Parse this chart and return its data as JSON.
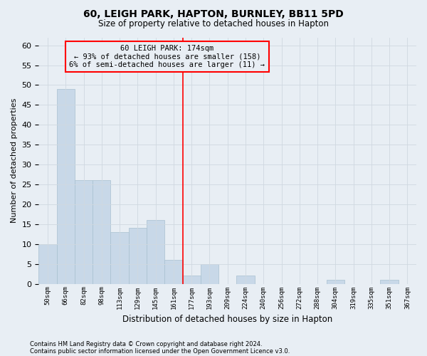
{
  "title1": "60, LEIGH PARK, HAPTON, BURNLEY, BB11 5PD",
  "title2": "Size of property relative to detached houses in Hapton",
  "xlabel": "Distribution of detached houses by size in Hapton",
  "ylabel": "Number of detached properties",
  "footer1": "Contains HM Land Registry data © Crown copyright and database right 2024.",
  "footer2": "Contains public sector information licensed under the Open Government Licence v3.0.",
  "bar_labels": [
    "50sqm",
    "66sqm",
    "82sqm",
    "98sqm",
    "113sqm",
    "129sqm",
    "145sqm",
    "161sqm",
    "177sqm",
    "193sqm",
    "209sqm",
    "224sqm",
    "240sqm",
    "256sqm",
    "272sqm",
    "288sqm",
    "304sqm",
    "319sqm",
    "335sqm",
    "351sqm",
    "367sqm"
  ],
  "bar_values": [
    10,
    49,
    26,
    26,
    13,
    14,
    16,
    6,
    2,
    5,
    0,
    2,
    0,
    0,
    0,
    0,
    1,
    0,
    0,
    1,
    0
  ],
  "bar_color": "#c8d8e8",
  "bar_edge_color": "#a8c0d0",
  "grid_color": "#d0d8e0",
  "vline_x": 7.5,
  "vline_color": "red",
  "annotation_text": "60 LEIGH PARK: 174sqm\n← 93% of detached houses are smaller (158)\n6% of semi-detached houses are larger (11) →",
  "annotation_box_color": "red",
  "ylim": [
    0,
    62
  ],
  "yticks": [
    0,
    5,
    10,
    15,
    20,
    25,
    30,
    35,
    40,
    45,
    50,
    55,
    60
  ],
  "background_color": "#ffffff",
  "fig_background_color": "#e8eef4"
}
